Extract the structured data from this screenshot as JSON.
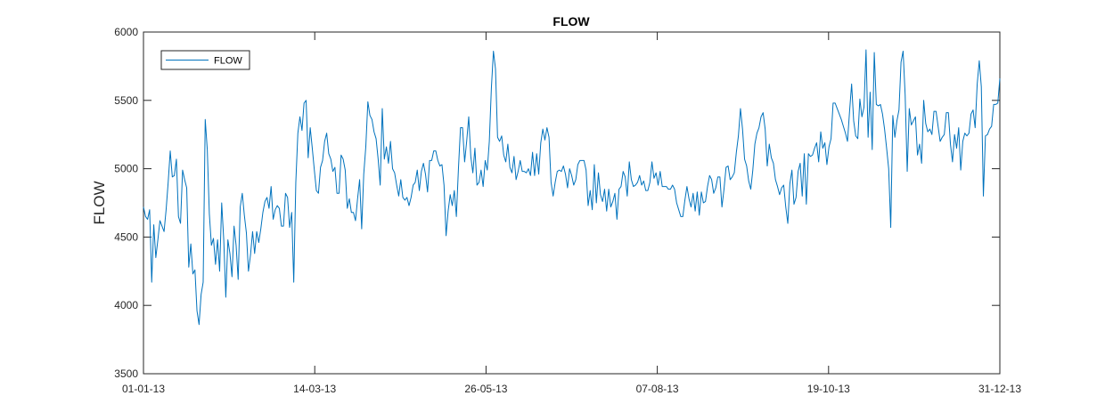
{
  "chart_data": {
    "type": "line",
    "title": "FLOW",
    "xlabel": "",
    "ylabel": "FLOW",
    "ylim": [
      3500,
      6000
    ],
    "yticks": [
      3500,
      4000,
      4500,
      5000,
      5500,
      6000
    ],
    "xlim": [
      "01-01-13",
      "31-12-13"
    ],
    "xticks": [
      "01-01-13",
      "14-03-13",
      "26-05-13",
      "07-08-13",
      "19-10-13",
      "31-12-13"
    ],
    "grid": false,
    "legend_position": "top-left",
    "colors": {
      "series": "#0072bd",
      "axis": "#262626"
    },
    "series": [
      {
        "name": "FLOW",
        "values": [
          4720,
          4650,
          4630,
          4700,
          4170,
          4590,
          4350,
          4480,
          4620,
          4580,
          4540,
          4700,
          4900,
          5130,
          4940,
          4950,
          5070,
          4650,
          4600,
          4990,
          4920,
          4860,
          4280,
          4450,
          4230,
          4260,
          3960,
          3860,
          4080,
          4170,
          5360,
          5140,
          4670,
          4440,
          4490,
          4300,
          4480,
          4250,
          4750,
          4480,
          4060,
          4480,
          4380,
          4210,
          4580,
          4440,
          4190,
          4720,
          4820,
          4660,
          4530,
          4250,
          4370,
          4540,
          4380,
          4540,
          4460,
          4560,
          4680,
          4760,
          4790,
          4710,
          4870,
          4630,
          4700,
          4730,
          4710,
          4580,
          4580,
          4820,
          4790,
          4570,
          4680,
          4170,
          4900,
          5260,
          5380,
          5280,
          5480,
          5500,
          5080,
          5300,
          5150,
          4990,
          4840,
          4820,
          5010,
          5060,
          5200,
          5260,
          5110,
          5070,
          4980,
          5010,
          4820,
          4820,
          5100,
          5070,
          4990,
          4710,
          4780,
          4680,
          4680,
          4620,
          4780,
          4920,
          4560,
          4960,
          5160,
          5490,
          5390,
          5360,
          5270,
          5220,
          5070,
          4880,
          5440,
          5070,
          5160,
          5040,
          5200,
          5000,
          4970,
          4880,
          4800,
          4920,
          4790,
          4770,
          4790,
          4730,
          4790,
          4880,
          4900,
          4990,
          4840,
          4980,
          5040,
          4960,
          4830,
          5060,
          5060,
          5130,
          5130,
          5060,
          5020,
          5030,
          4880,
          4510,
          4690,
          4810,
          4730,
          4840,
          4650,
          5000,
          5300,
          5300,
          5050,
          5200,
          5380,
          5090,
          4970,
          5150,
          4880,
          4900,
          4990,
          4870,
          5060,
          4990,
          5200,
          5590,
          5860,
          5730,
          5230,
          5200,
          5240,
          5100,
          5050,
          5180,
          5010,
          4970,
          5090,
          4920,
          4980,
          5060,
          4980,
          4980,
          4970,
          5000,
          4950,
          5120,
          4950,
          5110,
          4960,
          5190,
          5290,
          5210,
          5300,
          5230,
          4900,
          4800,
          4900,
          4980,
          4990,
          4980,
          5020,
          4960,
          4860,
          5000,
          4950,
          4880,
          4920,
          5030,
          5060,
          5060,
          5060,
          4990,
          4730,
          4840,
          4700,
          5030,
          4750,
          4970,
          4810,
          4760,
          4850,
          4690,
          4850,
          4720,
          4760,
          4820,
          4630,
          4850,
          4870,
          4980,
          4940,
          4800,
          5050,
          4920,
          4870,
          4880,
          4900,
          4950,
          4880,
          4910,
          4840,
          4840,
          4900,
          5050,
          4930,
          4970,
          4880,
          4980,
          4870,
          4870,
          4870,
          4850,
          4850,
          4880,
          4850,
          4750,
          4700,
          4650,
          4650,
          4770,
          4870,
          4780,
          4720,
          4820,
          4690,
          4830,
          4660,
          4830,
          4750,
          4760,
          4870,
          4950,
          4920,
          4820,
          4860,
          4940,
          4940,
          4720,
          4850,
          5010,
          5020,
          4920,
          4940,
          4970,
          5120,
          5240,
          5440,
          5290,
          5070,
          5020,
          4910,
          4850,
          4990,
          5180,
          5260,
          5300,
          5380,
          5410,
          5290,
          5020,
          5180,
          5080,
          5040,
          4920,
          4870,
          4810,
          4860,
          4880,
          4720,
          4600,
          4890,
          4990,
          4740,
          4790,
          4980,
          5040,
          4800,
          5110,
          4740,
          5110,
          5090,
          5100,
          5150,
          5190,
          5050,
          5270,
          5150,
          5190,
          5030,
          5160,
          5220,
          5480,
          5480,
          5440,
          5400,
          5360,
          5310,
          5260,
          5200,
          5420,
          5620,
          5350,
          5240,
          5220,
          5510,
          5380,
          5450,
          5870,
          5230,
          5560,
          5140,
          5850,
          5470,
          5460,
          5470,
          5400,
          5290,
          5150,
          5000,
          4570,
          5390,
          5230,
          5350,
          5430,
          5780,
          5860,
          5540,
          4980,
          5440,
          5320,
          5350,
          5380,
          5100,
          5180,
          5040,
          5500,
          5330,
          5270,
          5290,
          5250,
          5420,
          5420,
          5310,
          5200,
          5230,
          5250,
          5410,
          5410,
          5180,
          5050,
          5250,
          5150,
          5300,
          4990,
          5200,
          5260,
          5240,
          5260,
          5400,
          5430,
          5300,
          5620,
          5790,
          5600,
          4800,
          5240,
          5250,
          5290,
          5310,
          5470,
          5470,
          5480,
          5660
        ]
      }
    ]
  }
}
